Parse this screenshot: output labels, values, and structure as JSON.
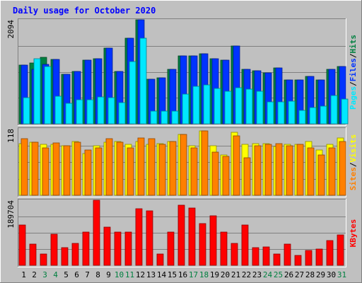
{
  "chart_data": {
    "type": "bar",
    "title": "Daily usage for October 2020",
    "categories": [
      "1",
      "2",
      "3",
      "4",
      "5",
      "6",
      "7",
      "8",
      "9",
      "10",
      "11",
      "12",
      "13",
      "14",
      "15",
      "16",
      "17",
      "18",
      "19",
      "20",
      "21",
      "22",
      "23",
      "24",
      "25",
      "26",
      "27",
      "28",
      "29",
      "30",
      "31"
    ],
    "weekend_days": [
      "3",
      "4",
      "10",
      "11",
      "17",
      "18",
      "24",
      "25",
      "31"
    ],
    "panels": [
      {
        "id": "hits",
        "max_label": "2094",
        "ymax": 2094,
        "side_labels": [
          "Pages",
          "Files",
          "Hits"
        ],
        "series": [
          {
            "name": "Hits",
            "color": "#008040",
            "values": [
              1180,
              1230,
              1340,
              1300,
              1000,
              1050,
              1280,
              1310,
              1530,
              1050,
              1730,
              2094,
              900,
              930,
              1100,
              1370,
              1370,
              1410,
              1310,
              1280,
              1560,
              1090,
              1070,
              1030,
              1130,
              890,
              880,
              950,
              880,
              1100,
              1150
            ]
          },
          {
            "name": "Files",
            "color": "#0033ff",
            "values": [
              1180,
              1100,
              1200,
              1300,
              1000,
              1050,
              1280,
              1310,
              1530,
              1050,
              1730,
              2094,
              900,
              930,
              1100,
              1370,
              1370,
              1410,
              1310,
              1280,
              1560,
              1090,
              1070,
              1030,
              1130,
              890,
              880,
              950,
              880,
              1100,
              1150
            ]
          },
          {
            "name": "Pages",
            "color": "#00e8ff",
            "values": [
              520,
              1310,
              1150,
              560,
              420,
              490,
              480,
              540,
              520,
              430,
              1250,
              1720,
              250,
              260,
              250,
              600,
              760,
              790,
              710,
              650,
              720,
              700,
              660,
              440,
              440,
              450,
              270,
              330,
              350,
              570,
              500
            ]
          }
        ]
      },
      {
        "id": "visits",
        "max_label": "118",
        "ymax": 118,
        "side_labels": [
          "Sites",
          "Visits"
        ],
        "series": [
          {
            "name": "Visits",
            "color": "#ffff00",
            "values": [
              92,
              94,
              90,
              90,
              88,
              96,
              74,
              88,
              94,
              96,
              90,
              96,
              90,
              92,
              96,
              108,
              88,
              114,
              88,
              72,
              112,
              90,
              92,
              92,
              86,
              90,
              90,
              96,
              80,
              90,
              102
            ]
          },
          {
            "name": "Sites",
            "color": "#ff8000",
            "values": [
              101,
              94,
              84,
              93,
              88,
              94,
              80,
              84,
              101,
              94,
              84,
              102,
              100,
              90,
              96,
              108,
              84,
              114,
              76,
              69,
              106,
              67,
              88,
              90,
              92,
              88,
              90,
              84,
              72,
              84,
              96
            ]
          }
        ]
      },
      {
        "id": "kbytes",
        "max_label": "189704",
        "ymax": 189704,
        "side_labels": [
          "KBytes"
        ],
        "series": [
          {
            "name": "KBytes",
            "color": "#ff0000",
            "values": [
              117000,
              62000,
              33000,
              91000,
              51000,
              64000,
              96000,
              189704,
              111000,
              96000,
              96000,
              164000,
              158000,
              33000,
              96000,
              176000,
              167000,
              122000,
              144000,
              96000,
              64000,
              117000,
              51000,
              54000,
              33000,
              62000,
              28000,
              44000,
              47000,
              72000,
              89000
            ]
          }
        ]
      }
    ],
    "colors": {
      "background": "#c0c0c0",
      "plot_background": "#c0c0c0",
      "frame_light": "#ffffff",
      "frame_dark": "#808080",
      "gridline": "#808080",
      "title": "#0000ff",
      "weekday_label": "#000000",
      "weekend_label": "#008040"
    }
  }
}
